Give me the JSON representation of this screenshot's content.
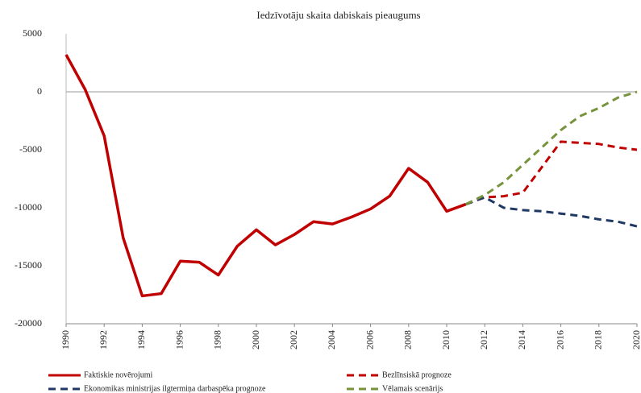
{
  "chart_data": {
    "type": "line",
    "title": "Iedzīvotāju skaita dabiskais pieaugums",
    "x": [
      1990,
      1991,
      1992,
      1993,
      1994,
      1995,
      1996,
      1997,
      1998,
      1999,
      2000,
      2001,
      2002,
      2003,
      2004,
      2005,
      2006,
      2007,
      2008,
      2009,
      2010,
      2011,
      2012,
      2013,
      2014,
      2015,
      2016,
      2017,
      2018,
      2019,
      2020
    ],
    "series": [
      {
        "name": "Faktiskie novērojumi",
        "color": "#c00000",
        "dash": false,
        "values": [
          3200,
          200,
          -3800,
          -12600,
          -17600,
          -17400,
          -14600,
          -14700,
          -15800,
          -13300,
          -11900,
          -13200,
          -12300,
          -11200,
          -11400,
          -10800,
          -10100,
          -9000,
          -6600,
          -7800,
          -10300,
          -9700,
          null,
          null,
          null,
          null,
          null,
          null,
          null,
          null,
          null
        ]
      },
      {
        "name": "Bezlīnsiskā prognoze",
        "color": "#c00000",
        "dash": true,
        "values": [
          null,
          null,
          null,
          null,
          null,
          null,
          null,
          null,
          null,
          null,
          null,
          null,
          null,
          null,
          null,
          null,
          null,
          null,
          null,
          null,
          null,
          -9700,
          -9100,
          -9000,
          -8700,
          -6500,
          -4300,
          -4400,
          -4500,
          -4800,
          -5000
        ]
      },
      {
        "name": "Ekonomikas ministrijas ilgtermiņa darbaspēka prognoze",
        "color": "#1f3864",
        "dash": true,
        "values": [
          null,
          null,
          null,
          null,
          null,
          null,
          null,
          null,
          null,
          null,
          null,
          null,
          null,
          null,
          null,
          null,
          null,
          null,
          null,
          null,
          null,
          -9700,
          -9100,
          -10000,
          -10200,
          -10300,
          -10500,
          -10700,
          -11000,
          -11200,
          -11600
        ]
      },
      {
        "name": "Vēlamais scenārijs",
        "color": "#77933c",
        "dash": true,
        "values": [
          null,
          null,
          null,
          null,
          null,
          null,
          null,
          null,
          null,
          null,
          null,
          null,
          null,
          null,
          null,
          null,
          null,
          null,
          null,
          null,
          null,
          -9700,
          -8900,
          -7800,
          -6300,
          -4800,
          -3300,
          -2100,
          -1400,
          -500,
          0
        ]
      }
    ],
    "xlim": [
      1990,
      2020
    ],
    "xticks": [
      1990,
      1992,
      1994,
      1996,
      1998,
      2000,
      2002,
      2004,
      2006,
      2008,
      2010,
      2012,
      2014,
      2016,
      2018,
      2020
    ],
    "ylim": [
      -20000,
      5000
    ],
    "yticks": [
      -20000,
      -15000,
      -10000,
      -5000,
      0,
      5000
    ]
  }
}
